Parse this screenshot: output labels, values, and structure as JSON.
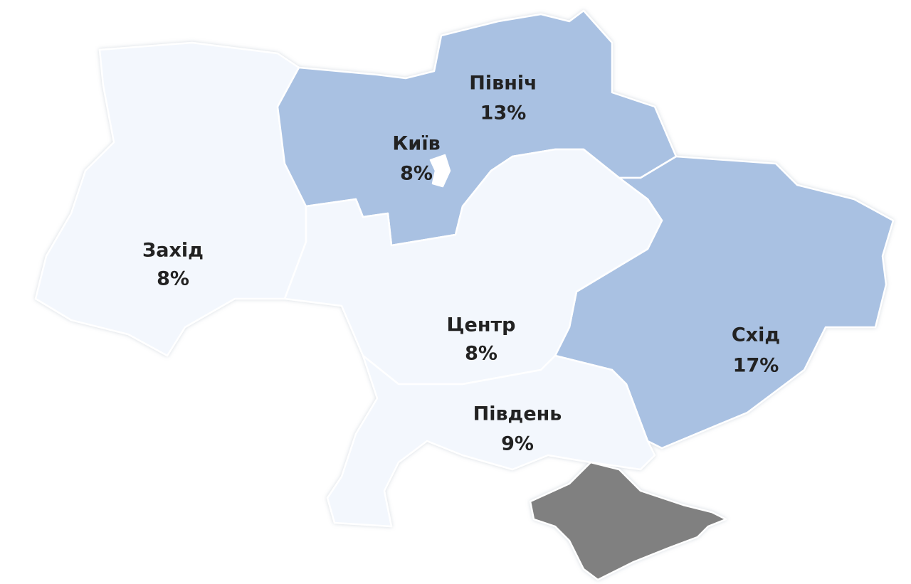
{
  "regions": [
    {
      "name": "Захід",
      "share": "8%",
      "color": "#f3f7fd"
    },
    {
      "name": "Київ",
      "share": "8%",
      "color": "#a9c1e2"
    },
    {
      "name": "Північ",
      "share": "13%",
      "color": "#a9c1e2"
    },
    {
      "name": "Центр",
      "share": "8%",
      "color": "#f3f7fd"
    },
    {
      "name": "Південь",
      "share": "9%",
      "color": "#f3f7fd"
    },
    {
      "name": "Схід",
      "share": "17%",
      "color": "#a9c1e2"
    }
  ]
}
